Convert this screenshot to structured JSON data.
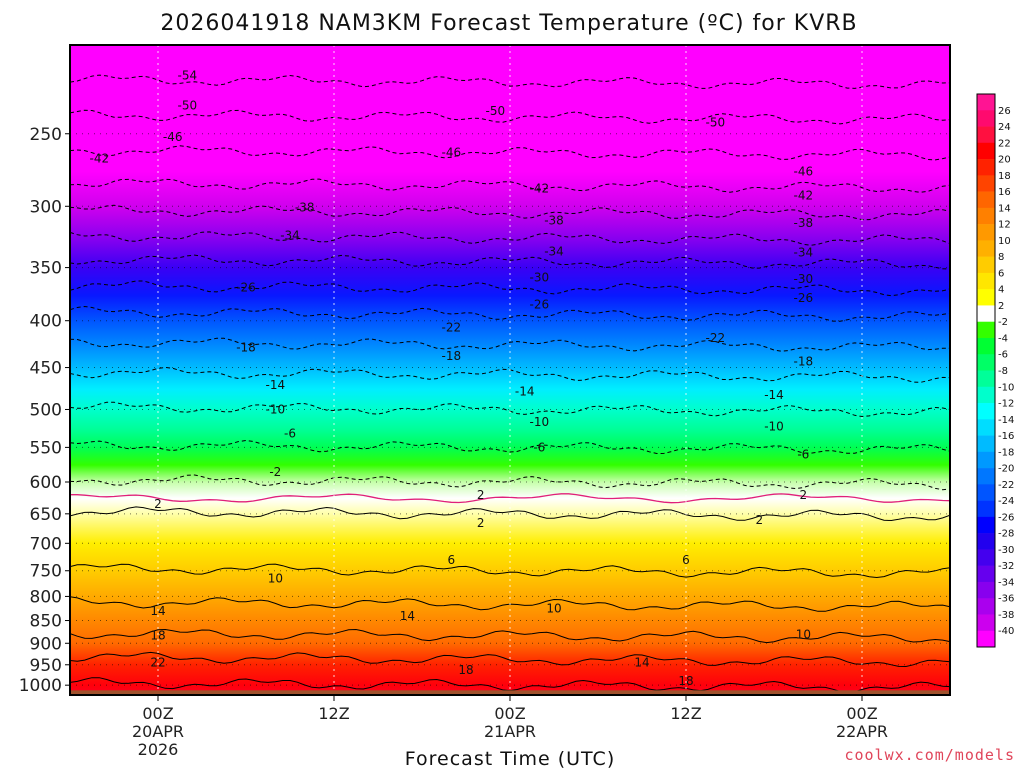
{
  "chart_data": {
    "type": "heatmap",
    "title": "2026041918 NAM3KM Forecast Temperature (ºC) for KVRB",
    "xlabel": "Forecast Time (UTC)",
    "ylabel": "",
    "credit": "coolwx.com/models",
    "ylim": [
      1025,
      200
    ],
    "xlim": [
      -6,
      54
    ],
    "pressure_ticks": [
      "250",
      "300",
      "350",
      "400",
      "450",
      "500",
      "550",
      "600",
      "650",
      "700",
      "750",
      "800",
      "850",
      "900",
      "950",
      "1000"
    ],
    "x_ticks": [
      {
        "hour": 0,
        "lines": [
          "00Z",
          "20APR",
          "2026"
        ]
      },
      {
        "hour": 12,
        "lines": [
          "12Z"
        ]
      },
      {
        "hour": 24,
        "lines": [
          "00Z",
          "21APR"
        ]
      },
      {
        "hour": 36,
        "lines": [
          "12Z"
        ]
      },
      {
        "hour": 48,
        "lines": [
          "00Z",
          "22APR"
        ]
      }
    ],
    "colorbar_ticks": [
      "26",
      "24",
      "22",
      "20",
      "18",
      "16",
      "14",
      "12",
      "10",
      "8",
      "6",
      "4",
      "2",
      "-2",
      "-4",
      "-6",
      "-8",
      "-10",
      "-12",
      "-14",
      "-16",
      "-18",
      "-20",
      "-22",
      "-24",
      "-26",
      "-28",
      "-30",
      "-32",
      "-34",
      "-36",
      "-38",
      "-40"
    ],
    "colorbar_colors": [
      "#ff1493",
      "#ff0a6e",
      "#ff1040",
      "#ff0000",
      "#ff2200",
      "#ff4400",
      "#ff6600",
      "#ff8000",
      "#ff9900",
      "#ffb000",
      "#ffcc00",
      "#ffe600",
      "#ffff00",
      "#ffffff",
      "#33ff00",
      "#00ff33",
      "#00ff66",
      "#00ff99",
      "#00ffcc",
      "#00ffff",
      "#00ddff",
      "#00bbff",
      "#0099ff",
      "#0077ff",
      "#0055ff",
      "#0033ff",
      "#0000ff",
      "#2200ee",
      "#4400ee",
      "#6600ee",
      "#8800ee",
      "#aa00ee",
      "#cc00ee",
      "#ff00ff"
    ],
    "profile": [
      {
        "p": 200,
        "t": -58
      },
      {
        "p": 230,
        "t": -52
      },
      {
        "p": 250,
        "t": -48
      },
      {
        "p": 275,
        "t": -44
      },
      {
        "p": 300,
        "t": -39
      },
      {
        "p": 325,
        "t": -34
      },
      {
        "p": 350,
        "t": -29
      },
      {
        "p": 375,
        "t": -25
      },
      {
        "p": 400,
        "t": -21
      },
      {
        "p": 425,
        "t": -18
      },
      {
        "p": 450,
        "t": -15
      },
      {
        "p": 475,
        "t": -12
      },
      {
        "p": 500,
        "t": -10
      },
      {
        "p": 525,
        "t": -8
      },
      {
        "p": 550,
        "t": -6
      },
      {
        "p": 575,
        "t": -4
      },
      {
        "p": 600,
        "t": -2
      },
      {
        "p": 625,
        "t": 0
      },
      {
        "p": 650,
        "t": 2
      },
      {
        "p": 700,
        "t": 4
      },
      {
        "p": 750,
        "t": 6
      },
      {
        "p": 800,
        "t": 9
      },
      {
        "p": 850,
        "t": 12
      },
      {
        "p": 900,
        "t": 15
      },
      {
        "p": 950,
        "t": 19
      },
      {
        "p": 1000,
        "t": 22
      },
      {
        "p": 1025,
        "t": 24
      }
    ],
    "contour_labels": [
      {
        "text": "-54",
        "hour": 2,
        "p": 216
      },
      {
        "text": "-50",
        "hour": 2,
        "p": 233
      },
      {
        "text": "-50",
        "hour": 23,
        "p": 236
      },
      {
        "text": "-50",
        "hour": 38,
        "p": 243
      },
      {
        "text": "-46",
        "hour": 1,
        "p": 252
      },
      {
        "text": "-46",
        "hour": 20,
        "p": 262
      },
      {
        "text": "-46",
        "hour": 44,
        "p": 275
      },
      {
        "text": "-42",
        "hour": -4,
        "p": 266
      },
      {
        "text": "-42",
        "hour": 26,
        "p": 287
      },
      {
        "text": "-42",
        "hour": 44,
        "p": 292
      },
      {
        "text": "-38",
        "hour": 10,
        "p": 301
      },
      {
        "text": "-38",
        "hour": 27,
        "p": 311
      },
      {
        "text": "-38",
        "hour": 44,
        "p": 313
      },
      {
        "text": "-34",
        "hour": 9,
        "p": 323
      },
      {
        "text": "-34",
        "hour": 27,
        "p": 336
      },
      {
        "text": "-34",
        "hour": 44,
        "p": 337
      },
      {
        "text": "-30",
        "hour": 26,
        "p": 359
      },
      {
        "text": "-30",
        "hour": 44,
        "p": 360
      },
      {
        "text": "-26",
        "hour": 6,
        "p": 368
      },
      {
        "text": "-26",
        "hour": 26,
        "p": 384
      },
      {
        "text": "-26",
        "hour": 44,
        "p": 378
      },
      {
        "text": "-22",
        "hour": 20,
        "p": 407
      },
      {
        "text": "-22",
        "hour": 38,
        "p": 418
      },
      {
        "text": "-18",
        "hour": 6,
        "p": 428
      },
      {
        "text": "-18",
        "hour": 20,
        "p": 437
      },
      {
        "text": "-18",
        "hour": 44,
        "p": 443
      },
      {
        "text": "-14",
        "hour": 8,
        "p": 470
      },
      {
        "text": "-14",
        "hour": 25,
        "p": 478
      },
      {
        "text": "-14",
        "hour": 42,
        "p": 482
      },
      {
        "text": "-10",
        "hour": 8,
        "p": 500
      },
      {
        "text": "-10",
        "hour": 26,
        "p": 516
      },
      {
        "text": "-10",
        "hour": 42,
        "p": 522
      },
      {
        "text": "-6",
        "hour": 9,
        "p": 531
      },
      {
        "text": "-6",
        "hour": 26,
        "p": 550
      },
      {
        "text": "-6",
        "hour": 44,
        "p": 560
      },
      {
        "text": "-2",
        "hour": 8,
        "p": 585
      },
      {
        "text": "2",
        "hour": 0,
        "p": 634
      },
      {
        "text": "2",
        "hour": 22,
        "p": 620
      },
      {
        "text": "2",
        "hour": 44,
        "p": 620
      },
      {
        "text": "2",
        "hour": 22,
        "p": 665
      },
      {
        "text": "2",
        "hour": 41,
        "p": 660
      },
      {
        "text": "6",
        "hour": 20,
        "p": 730
      },
      {
        "text": "6",
        "hour": 36,
        "p": 730
      },
      {
        "text": "10",
        "hour": 8,
        "p": 765
      },
      {
        "text": "10",
        "hour": 27,
        "p": 825
      },
      {
        "text": "10",
        "hour": 44,
        "p": 880
      },
      {
        "text": "14",
        "hour": 0,
        "p": 830
      },
      {
        "text": "14",
        "hour": 17,
        "p": 840
      },
      {
        "text": "14",
        "hour": 33,
        "p": 944
      },
      {
        "text": "18",
        "hour": 0,
        "p": 883
      },
      {
        "text": "18",
        "hour": 21,
        "p": 963
      },
      {
        "text": "18",
        "hour": 36,
        "p": 990
      },
      {
        "text": "22",
        "hour": 0,
        "p": 945
      }
    ]
  }
}
